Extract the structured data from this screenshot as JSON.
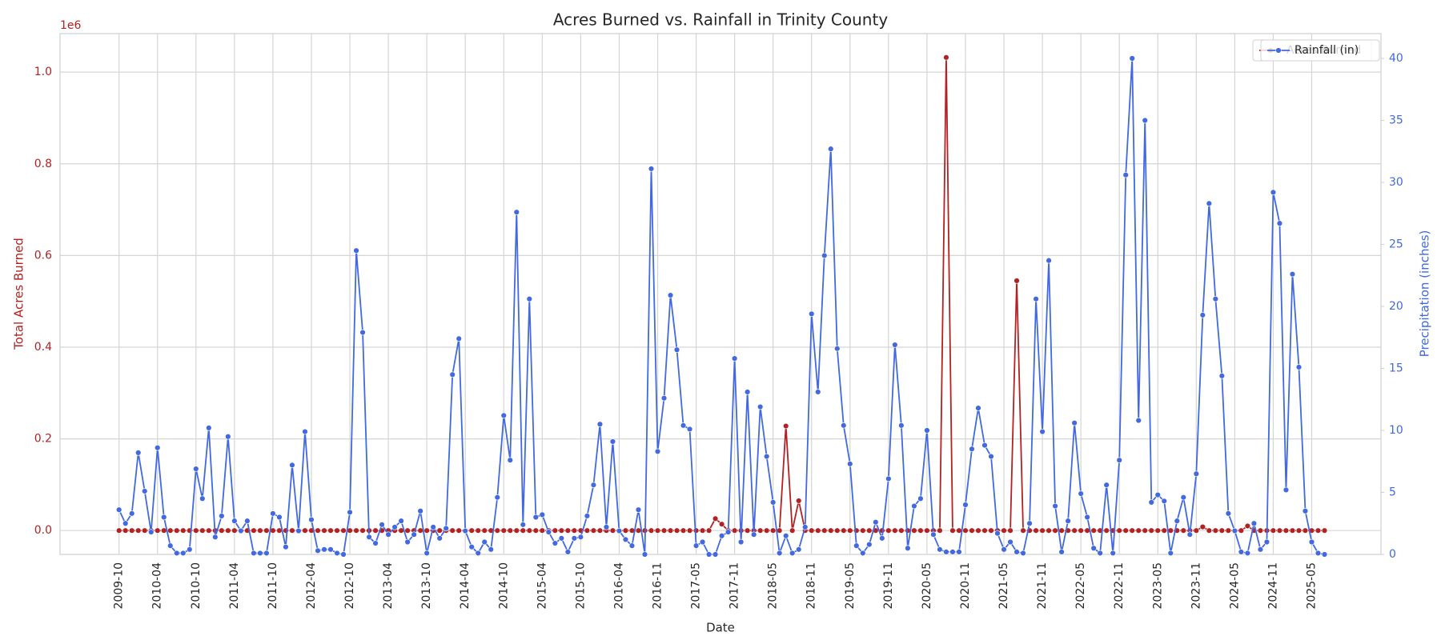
{
  "chart_data": {
    "type": "line",
    "title": "Acres Burned vs. Rainfall in Trinity County",
    "xlabel": "Date",
    "ylabel": "Total Acres Burned",
    "y2label": "Precipitation (inches)",
    "y_offset_label": "1e6",
    "grid": true,
    "markers": true,
    "legend": "upper right",
    "categories": [
      "2009-10",
      null,
      null,
      null,
      null,
      null,
      "2010-04",
      null,
      null,
      null,
      null,
      null,
      "2010-10",
      null,
      null,
      null,
      null,
      null,
      "2011-04",
      null,
      null,
      null,
      null,
      null,
      "2011-10",
      null,
      null,
      null,
      null,
      null,
      "2012-04",
      null,
      null,
      null,
      null,
      null,
      "2012-10",
      null,
      null,
      null,
      null,
      null,
      "2013-04",
      null,
      null,
      null,
      null,
      null,
      "2013-10",
      null,
      null,
      null,
      null,
      null,
      "2014-04",
      null,
      null,
      null,
      null,
      null,
      "2014-10",
      null,
      null,
      null,
      null,
      null,
      "2015-04",
      null,
      null,
      null,
      null,
      null,
      "2015-10",
      null,
      null,
      null,
      null,
      null,
      "2016-04",
      null,
      null,
      null,
      null,
      null,
      "2016-11",
      null,
      null,
      null,
      null,
      null,
      "2017-05",
      null,
      null,
      null,
      null,
      null,
      "2017-11",
      null,
      null,
      null,
      null,
      null,
      "2018-05",
      null,
      null,
      null,
      null,
      null,
      "2018-11",
      null,
      null,
      null,
      null,
      null,
      "2019-05",
      null,
      null,
      null,
      null,
      null,
      "2019-11",
      null,
      null,
      null,
      null,
      null,
      "2020-05",
      null,
      null,
      null,
      null,
      null,
      "2020-11",
      null,
      null,
      null,
      null,
      null,
      "2021-05",
      null,
      null,
      null,
      null,
      null,
      "2021-11",
      null,
      null,
      null,
      null,
      null,
      "2022-05",
      null,
      null,
      null,
      null,
      null,
      "2022-11",
      null,
      null,
      null,
      null,
      null,
      "2023-05",
      null,
      null,
      null,
      null,
      null,
      "2023-11",
      null,
      null,
      null,
      null,
      null,
      "2024-05",
      null,
      null,
      null,
      null,
      null,
      "2024-11",
      null,
      null,
      null,
      null,
      null,
      "2025-05",
      null,
      null
    ],
    "series": [
      {
        "name": "Acres Burned",
        "color": "#b22222",
        "axis": "y",
        "values": [
          0,
          0,
          0,
          0,
          0,
          0,
          0,
          0,
          0,
          0,
          0,
          0,
          0,
          0,
          0,
          0,
          0,
          0,
          0,
          0,
          0,
          0,
          0,
          0,
          0,
          0,
          0,
          0,
          0,
          0,
          0,
          0,
          0,
          0,
          0,
          0,
          0,
          0,
          0,
          0,
          0,
          0,
          0,
          0,
          0,
          0,
          0,
          0,
          0,
          0,
          0,
          0,
          0,
          0,
          0,
          0,
          0,
          0,
          0,
          0,
          0,
          0,
          0,
          0,
          0,
          0,
          0,
          0,
          0,
          0,
          0,
          0,
          0,
          0,
          0,
          0,
          0,
          0,
          0,
          0,
          0,
          0,
          0,
          0,
          0,
          0,
          0,
          0,
          0,
          0,
          0,
          0,
          0,
          26000,
          14000,
          0,
          0,
          0,
          0,
          0,
          0,
          0,
          0,
          0,
          228000,
          0,
          65000,
          0,
          0,
          0,
          0,
          0,
          0,
          0,
          0,
          0,
          0,
          0,
          0,
          0,
          0,
          0,
          0,
          0,
          0,
          0,
          0,
          0,
          0,
          1032000,
          0,
          0,
          0,
          0,
          0,
          0,
          0,
          0,
          0,
          0,
          545000,
          0,
          0,
          0,
          0,
          0,
          0,
          0,
          0,
          0,
          0,
          0,
          0,
          0,
          0,
          0,
          0,
          0,
          0,
          0,
          0,
          0,
          0,
          0,
          0,
          0,
          0,
          0,
          0,
          8000,
          0,
          0,
          0,
          0,
          0,
          0,
          10000,
          0,
          0,
          0,
          0,
          0,
          0,
          0,
          0,
          0,
          0,
          0,
          0
        ]
      },
      {
        "name": "Rainfall (in)",
        "color": "#4169e1",
        "axis": "y2",
        "values": [
          3.6,
          2.5,
          3.3,
          8.2,
          5.1,
          1.8,
          8.6,
          3.0,
          0.7,
          0.1,
          0.1,
          0.4,
          6.9,
          4.5,
          10.2,
          1.4,
          3.1,
          9.5,
          2.7,
          1.9,
          2.7,
          0.1,
          0.1,
          0.1,
          3.3,
          3.0,
          0.6,
          7.2,
          1.9,
          9.9,
          2.8,
          0.3,
          0.4,
          0.4,
          0.1,
          0,
          3.4,
          24.5,
          17.9,
          1.4,
          0.9,
          2.4,
          1.6,
          2.2,
          2.7,
          1.0,
          1.6,
          3.5,
          0.1,
          2.2,
          1.3,
          2.1,
          14.5,
          17.4,
          1.9,
          0.6,
          0.1,
          1.0,
          0.4,
          4.6,
          11.2,
          7.6,
          27.6,
          2.4,
          20.6,
          3.0,
          3.2,
          1.8,
          0.9,
          1.3,
          0.2,
          1.3,
          1.4,
          3.1,
          5.6,
          10.5,
          2.2,
          9.1,
          1.9,
          1.2,
          0.7,
          3.6,
          0,
          31.1,
          8.3,
          12.6,
          20.9,
          16.5,
          10.4,
          10.1,
          0.7,
          1.0,
          0,
          0,
          1.5,
          1.8,
          15.8,
          1.0,
          13.1,
          1.6,
          11.9,
          7.9,
          4.2,
          0.1,
          1.5,
          0.1,
          0.4,
          2.2,
          19.4,
          13.1,
          24.1,
          32.7,
          16.6,
          10.4,
          7.3,
          0.7,
          0.1,
          0.8,
          2.6,
          1.3,
          6.1,
          16.9,
          10.4,
          0.5,
          3.9,
          4.5,
          10.0,
          1.6,
          0.4,
          0.2,
          0.2,
          0.2,
          4.0,
          8.5,
          11.8,
          8.8,
          7.9,
          1.7,
          0.4,
          1.0,
          0.2,
          0.1,
          2.5,
          20.6,
          9.9,
          23.7,
          3.9,
          0.2,
          2.7,
          10.6,
          4.9,
          3.0,
          0.5,
          0.1,
          5.6,
          0.1,
          7.6,
          30.6,
          40.0,
          10.8,
          35.0,
          4.2,
          4.8,
          4.3,
          0.1,
          2.7,
          4.6,
          1.6,
          6.5,
          19.3,
          28.3,
          20.6,
          14.4,
          3.3,
          1.9,
          0.2,
          0.1,
          2.5,
          0.4,
          1.0,
          29.2,
          26.7,
          5.2,
          22.6,
          15.1,
          3.5,
          1.0,
          0.1,
          0
        ]
      }
    ],
    "ylim": [
      -52000,
      1084000
    ],
    "yticks": [
      {
        "value": 0,
        "label": "0.0"
      },
      {
        "value": 200000,
        "label": "0.2"
      },
      {
        "value": 400000,
        "label": "0.4"
      },
      {
        "value": 600000,
        "label": "0.6"
      },
      {
        "value": 800000,
        "label": "0.8"
      },
      {
        "value": 1000000,
        "label": "1.0"
      }
    ],
    "y2lim": [
      0,
      42
    ],
    "y2ticks": [
      0,
      5,
      10,
      15,
      20,
      25,
      30,
      35,
      40
    ]
  }
}
